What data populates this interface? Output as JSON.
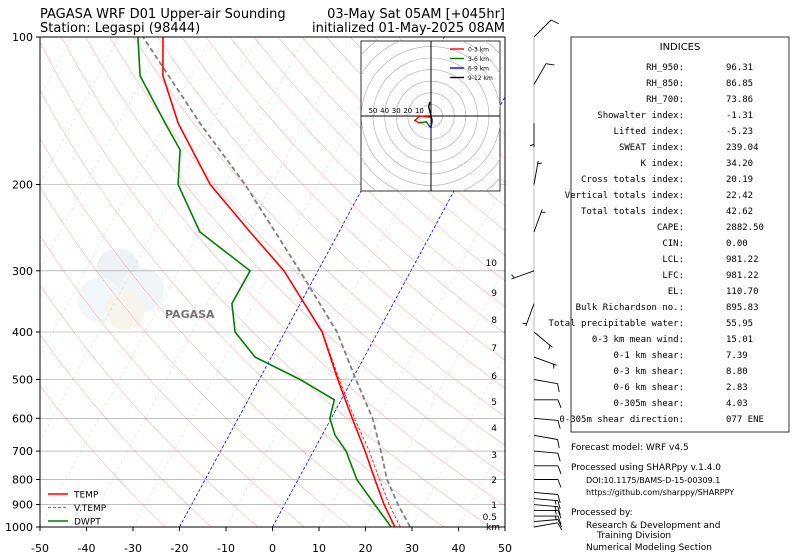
{
  "header": {
    "title": "PAGASA WRF D01 Upper-air Sounding",
    "station": "Station: Legaspi (98444)",
    "valid": "03-May Sat 05AM [+045hr]",
    "init": "initialized 01-May-2025 08AM"
  },
  "watermark": "PAGASA",
  "chart_data": {
    "type": "skewt",
    "xlim": [
      -50,
      50
    ],
    "xticks": [
      -50,
      -40,
      -30,
      -20,
      -10,
      0,
      10,
      20,
      30,
      40,
      50
    ],
    "ylim": [
      1000,
      100
    ],
    "yticks": [
      100,
      200,
      300,
      400,
      500,
      600,
      700,
      800,
      900,
      1000
    ],
    "log_y": true,
    "grid": true,
    "legend": "lower left",
    "series": [
      {
        "name": "TEMP",
        "color": "#ff0000",
        "style": "solid",
        "pressures": [
          1000,
          900,
          800,
          700,
          600,
          500,
          400,
          300,
          250,
          200,
          150,
          120,
          100
        ],
        "values": [
          26.3,
          21.4,
          16.5,
          11.1,
          4.5,
          -3.1,
          -12,
          -27.3,
          -39.1,
          -53.2,
          -67.2,
          -76,
          -80.5
        ]
      },
      {
        "name": "V.TEMP",
        "color": "#ff0000",
        "style": "dashed",
        "pressures": [
          1000,
          900,
          800,
          700,
          600,
          500,
          400,
          300
        ],
        "values": [
          27.5,
          22.5,
          17.5,
          12,
          5,
          -2.8,
          -11.9,
          -27.3
        ]
      },
      {
        "name": "DWPT",
        "color": "#008000",
        "style": "solid",
        "pressures": [
          1000,
          900,
          800,
          700,
          650,
          600,
          550,
          500,
          450,
          400,
          350,
          300,
          250,
          200,
          170,
          150,
          120,
          100
        ],
        "values": [
          25.5,
          19.4,
          12.6,
          7,
          2.8,
          -0.3,
          -1.5,
          -11.2,
          -23.5,
          -30.7,
          -34.7,
          -34.6,
          -49.9,
          -60.1,
          -63.7,
          -70,
          -80.9,
          -85.9
        ]
      }
    ],
    "parcel": {
      "color": "#808080",
      "style": "dashed",
      "pressures": [
        1000,
        900,
        800,
        700,
        600,
        500,
        400,
        300,
        200,
        150,
        100
      ],
      "values": [
        29.6,
        24.4,
        19.1,
        14.5,
        8.9,
        0.8,
        -8.8,
        -23.9,
        -45.7,
        -62.5,
        -84.8
      ]
    },
    "height_labels": {
      "unit": "km",
      "values": [
        0.5,
        1,
        2,
        3,
        4,
        5,
        6,
        7,
        8,
        9,
        10
      ],
      "pressures": [
        954,
        902,
        802,
        713,
        628,
        556,
        492,
        431,
        378,
        333,
        289
      ]
    },
    "hodograph": {
      "ring_labels": [
        50,
        40,
        30,
        20,
        10
      ],
      "segments": [
        {
          "name": "0-3 km",
          "color": "#ff0000",
          "u": [
            0,
            -10,
            -14,
            -10
          ],
          "v": [
            -1,
            0,
            -4,
            -6
          ]
        },
        {
          "name": "3-6 km",
          "color": "#008000",
          "u": [
            -10,
            -4,
            -2
          ],
          "v": [
            -6,
            -5,
            -8
          ]
        },
        {
          "name": "6-9 km",
          "color": "#0000ff",
          "u": [
            -2,
            0,
            1
          ],
          "v": [
            -8,
            -10,
            -4
          ]
        },
        {
          "name": "9-12 km",
          "color": "#000000",
          "u": [
            1,
            -2,
            -1
          ],
          "v": [
            -4,
            8,
            12
          ]
        }
      ]
    },
    "winds": {
      "pressures": [
        1000,
        975,
        950,
        925,
        900,
        875,
        850,
        800,
        750,
        700,
        650,
        600,
        550,
        500,
        450,
        400,
        350,
        300,
        250,
        200,
        150,
        125,
        100
      ],
      "directions": [
        80,
        85,
        90,
        90,
        95,
        95,
        95,
        90,
        90,
        95,
        100,
        95,
        90,
        100,
        110,
        130,
        200,
        250,
        20,
        10,
        180,
        30,
        45
      ],
      "speeds": [
        8,
        12,
        15,
        15,
        14,
        13,
        12,
        12,
        11,
        10,
        10,
        9,
        9,
        8,
        7,
        5,
        3,
        5,
        4,
        4,
        5,
        8,
        12
      ]
    }
  },
  "indices": {
    "title": "INDICES",
    "rows": [
      [
        "RH_950:",
        "96.31"
      ],
      [
        "RH_850:",
        "86.85"
      ],
      [
        "RH_700:",
        "73.86"
      ],
      [
        "Showalter index:",
        "-1.31"
      ],
      [
        "Lifted index:",
        "-5.23"
      ],
      [
        "SWEAT index:",
        "239.04"
      ],
      [
        "K index:",
        "34.20"
      ],
      [
        "Cross totals index:",
        "20.19"
      ],
      [
        "Vertical totals index:",
        "22.42"
      ],
      [
        "Total totals index:",
        "42.62"
      ],
      [
        "CAPE:",
        "2882.50"
      ],
      [
        "CIN:",
        "0.00"
      ],
      [
        "LCL:",
        "981.22"
      ],
      [
        "LFC:",
        "981.22"
      ],
      [
        "EL:",
        "110.70"
      ],
      [
        "Bulk Richardson no.:",
        "895.83"
      ],
      [
        "Total precipitable water:",
        "55.95"
      ],
      [
        "0-3 km mean wind:",
        "15.01"
      ],
      [
        "0-1 km shear:",
        "7.39"
      ],
      [
        "0-3 km shear:",
        "8.80"
      ],
      [
        "0-6 km shear:",
        "2.83"
      ],
      [
        "0-305m shear:",
        "4.03"
      ],
      [
        "0-305m shear direction:",
        "077 ENE"
      ]
    ]
  },
  "footer": [
    "Forecast model: WRF v4.5",
    "Processed using SHARPpy v.1.4.0",
    "DOI:10.1175/BAMS-D-15-00309.1",
    "https://github.com/sharppy/SHARPPY",
    "Processed by:",
    "Research & Development and",
    "Training Division",
    "Numerical Modeling Section"
  ]
}
